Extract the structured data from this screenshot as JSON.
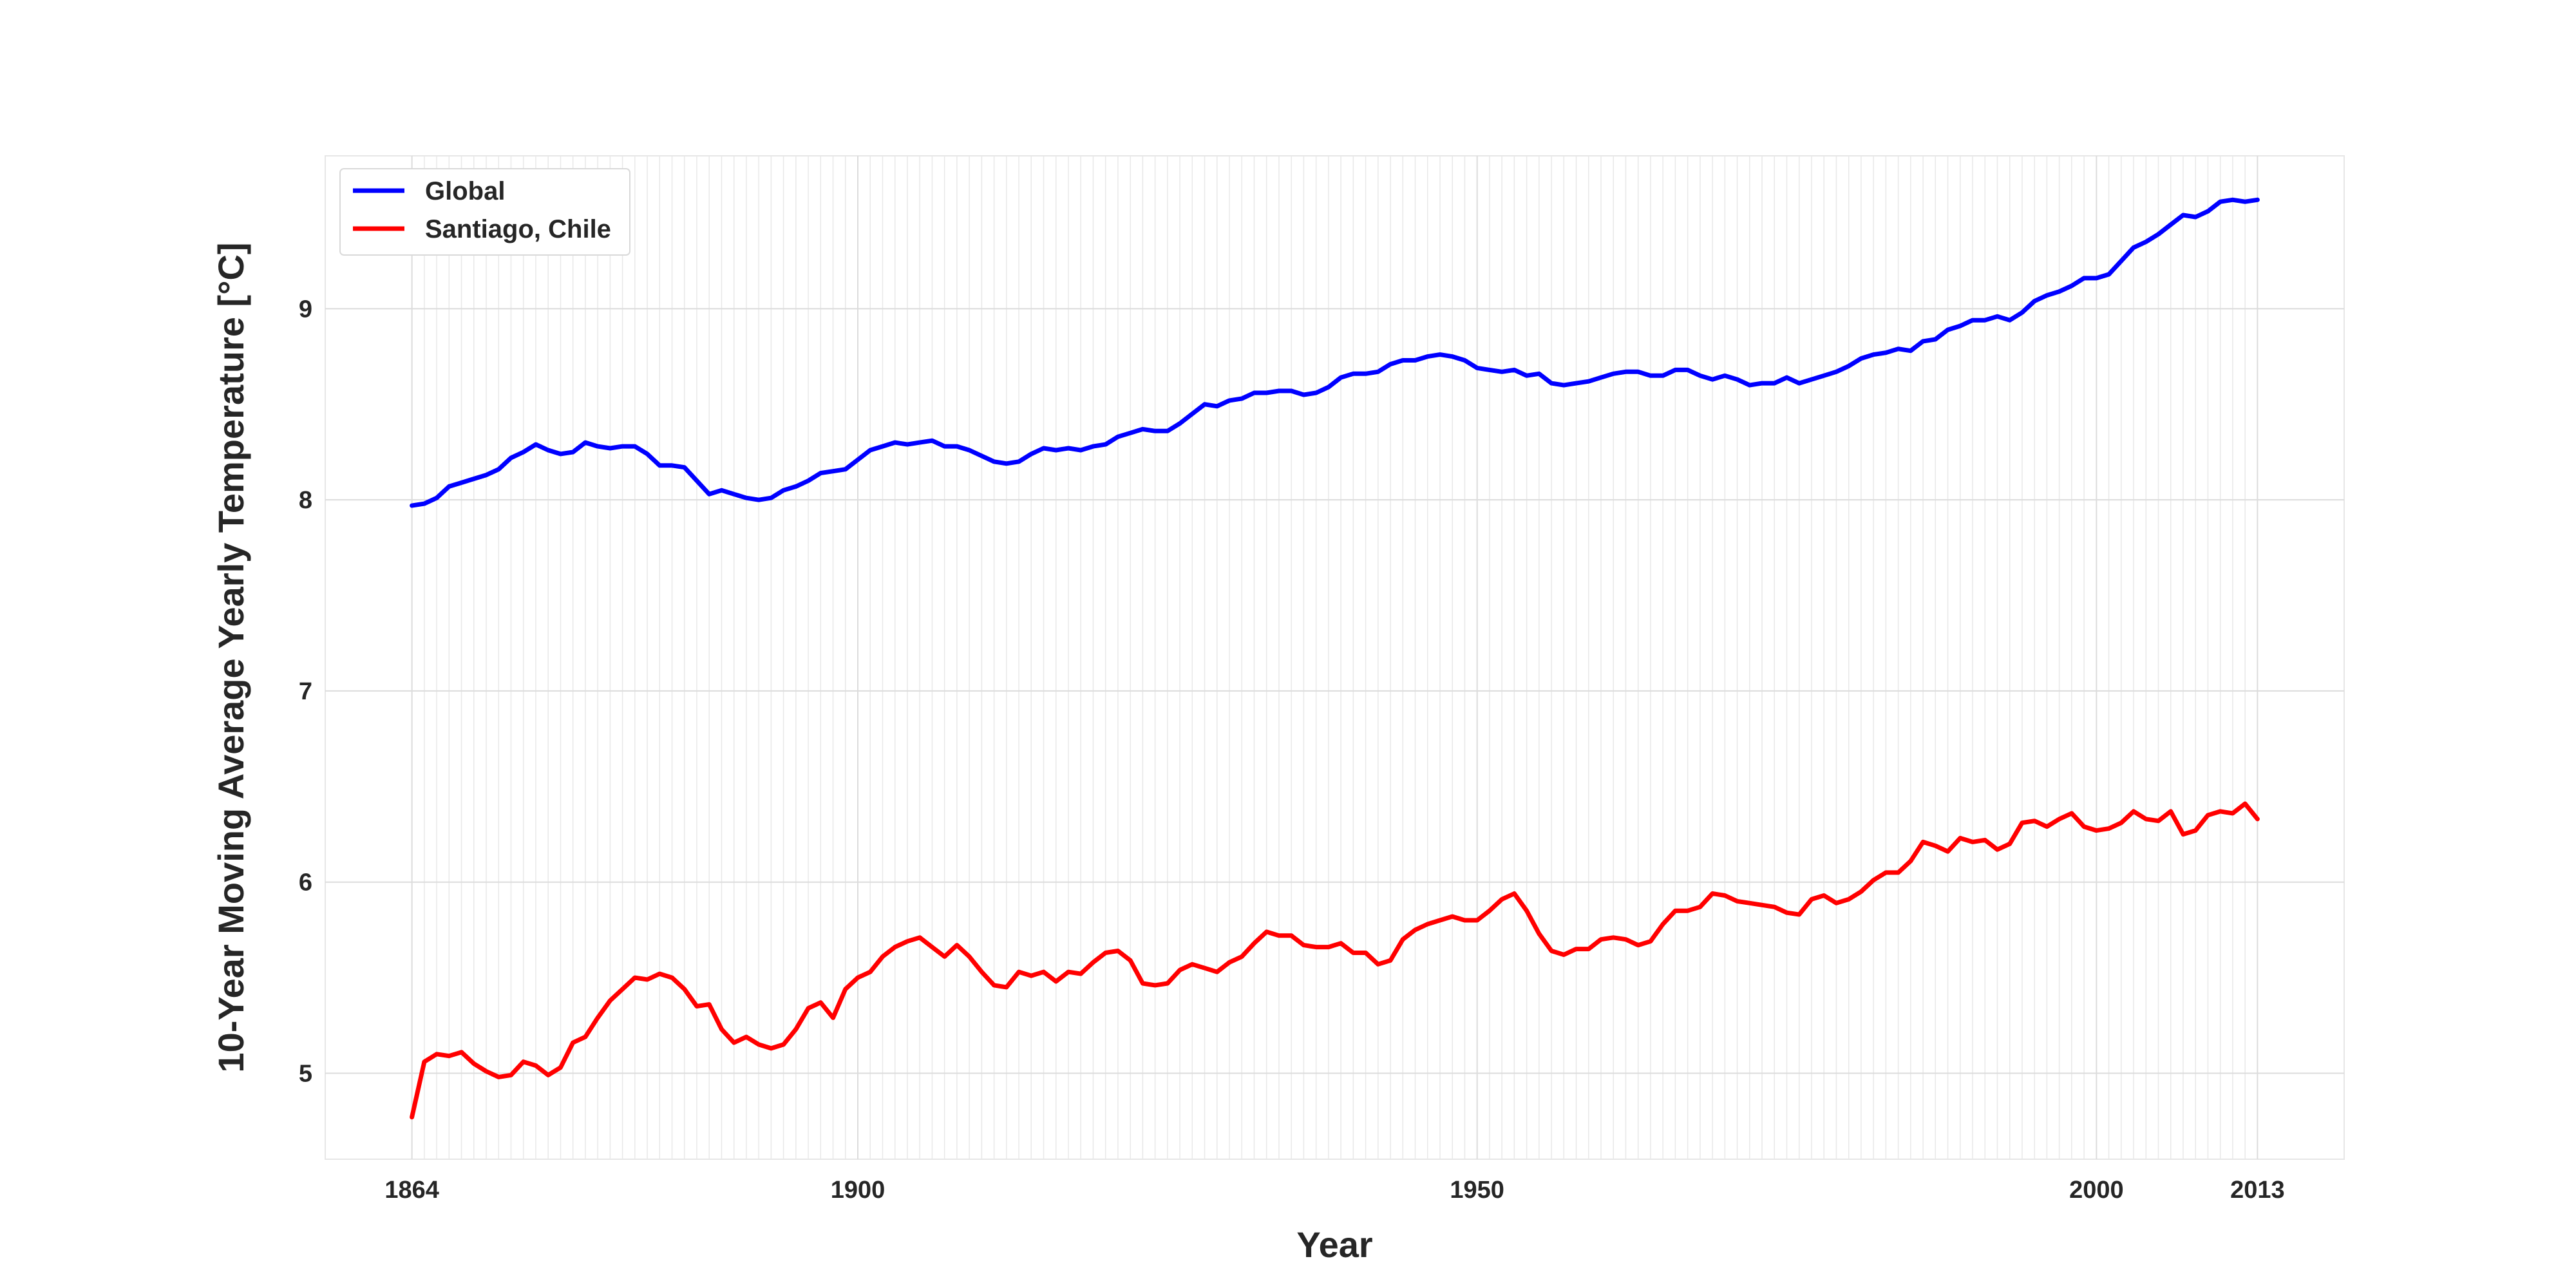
{
  "chart_data": {
    "type": "line",
    "title": "",
    "xlabel": "Year",
    "ylabel": "10-Year Moving Average Yearly Temperature [°C]",
    "xlim": [
      1857,
      2020
    ],
    "ylim": [
      4.55,
      9.8
    ],
    "x_ticks": [
      1864,
      1900,
      1950,
      2000,
      2013
    ],
    "y_ticks": [
      5,
      6,
      7,
      8,
      9
    ],
    "grid": true,
    "legend_position": "top-left",
    "colors": {
      "global": "#0000ff",
      "santiago": "#ff0000"
    },
    "x": [
      1864,
      1865,
      1866,
      1867,
      1868,
      1869,
      1870,
      1871,
      1872,
      1873,
      1874,
      1875,
      1876,
      1877,
      1878,
      1879,
      1880,
      1881,
      1882,
      1883,
      1884,
      1885,
      1886,
      1887,
      1888,
      1889,
      1890,
      1891,
      1892,
      1893,
      1894,
      1895,
      1896,
      1897,
      1898,
      1899,
      1900,
      1901,
      1902,
      1903,
      1904,
      1905,
      1906,
      1907,
      1908,
      1909,
      1910,
      1911,
      1912,
      1913,
      1914,
      1915,
      1916,
      1917,
      1918,
      1919,
      1920,
      1921,
      1922,
      1923,
      1924,
      1925,
      1926,
      1927,
      1928,
      1929,
      1930,
      1931,
      1932,
      1933,
      1934,
      1935,
      1936,
      1937,
      1938,
      1939,
      1940,
      1941,
      1942,
      1943,
      1944,
      1945,
      1946,
      1947,
      1948,
      1949,
      1950,
      1951,
      1952,
      1953,
      1954,
      1955,
      1956,
      1957,
      1958,
      1959,
      1960,
      1961,
      1962,
      1963,
      1964,
      1965,
      1966,
      1967,
      1968,
      1969,
      1970,
      1971,
      1972,
      1973,
      1974,
      1975,
      1976,
      1977,
      1978,
      1979,
      1980,
      1981,
      1982,
      1983,
      1984,
      1985,
      1986,
      1987,
      1988,
      1989,
      1990,
      1991,
      1992,
      1993,
      1994,
      1995,
      1996,
      1997,
      1998,
      1999,
      2000,
      2001,
      2002,
      2003,
      2004,
      2005,
      2006,
      2007,
      2008,
      2009,
      2010,
      2011,
      2012,
      2013
    ],
    "series": [
      {
        "name": "Global",
        "values": [
          7.97,
          7.98,
          8.01,
          8.07,
          8.09,
          8.11,
          8.13,
          8.16,
          8.22,
          8.25,
          8.29,
          8.26,
          8.24,
          8.25,
          8.3,
          8.28,
          8.27,
          8.28,
          8.28,
          8.24,
          8.18,
          8.18,
          8.17,
          8.1,
          8.03,
          8.05,
          8.03,
          8.01,
          8.0,
          8.01,
          8.05,
          8.07,
          8.1,
          8.14,
          8.15,
          8.16,
          8.21,
          8.26,
          8.28,
          8.3,
          8.29,
          8.3,
          8.31,
          8.28,
          8.28,
          8.26,
          8.23,
          8.2,
          8.19,
          8.2,
          8.24,
          8.27,
          8.26,
          8.27,
          8.26,
          8.28,
          8.29,
          8.33,
          8.35,
          8.37,
          8.36,
          8.36,
          8.4,
          8.45,
          8.5,
          8.49,
          8.52,
          8.53,
          8.56,
          8.56,
          8.57,
          8.57,
          8.55,
          8.56,
          8.59,
          8.64,
          8.66,
          8.66,
          8.67,
          8.71,
          8.73,
          8.73,
          8.75,
          8.76,
          8.75,
          8.73,
          8.69,
          8.68,
          8.67,
          8.68,
          8.65,
          8.66,
          8.61,
          8.6,
          8.61,
          8.62,
          8.64,
          8.66,
          8.67,
          8.67,
          8.65,
          8.65,
          8.68,
          8.68,
          8.65,
          8.63,
          8.65,
          8.63,
          8.6,
          8.61,
          8.61,
          8.64,
          8.61,
          8.63,
          8.65,
          8.67,
          8.7,
          8.74,
          8.76,
          8.77,
          8.79,
          8.78,
          8.83,
          8.84,
          8.89,
          8.91,
          8.94,
          8.94,
          8.96,
          8.94,
          8.98,
          9.04,
          9.07,
          9.09,
          9.12,
          9.16,
          9.16,
          9.18,
          9.25,
          9.32,
          9.35,
          9.39,
          9.44,
          9.49,
          9.48,
          9.51,
          9.56,
          9.57,
          9.56,
          9.57
        ]
      },
      {
        "name": "Santiago, Chile",
        "values": [
          4.77,
          5.06,
          5.1,
          5.09,
          5.11,
          5.05,
          5.01,
          4.98,
          4.99,
          5.06,
          5.04,
          4.99,
          5.03,
          5.16,
          5.19,
          5.29,
          5.38,
          5.44,
          5.5,
          5.49,
          5.52,
          5.5,
          5.44,
          5.35,
          5.36,
          5.23,
          5.16,
          5.19,
          5.15,
          5.13,
          5.15,
          5.23,
          5.34,
          5.37,
          5.29,
          5.44,
          5.5,
          5.53,
          5.61,
          5.66,
          5.69,
          5.71,
          5.66,
          5.61,
          5.67,
          5.61,
          5.53,
          5.46,
          5.45,
          5.53,
          5.51,
          5.53,
          5.48,
          5.53,
          5.52,
          5.58,
          5.63,
          5.64,
          5.59,
          5.47,
          5.46,
          5.47,
          5.54,
          5.57,
          5.55,
          5.53,
          5.58,
          5.61,
          5.68,
          5.74,
          5.72,
          5.72,
          5.67,
          5.66,
          5.66,
          5.68,
          5.63,
          5.63,
          5.57,
          5.59,
          5.7,
          5.75,
          5.78,
          5.8,
          5.82,
          5.8,
          5.8,
          5.85,
          5.91,
          5.94,
          5.85,
          5.73,
          5.64,
          5.62,
          5.65,
          5.65,
          5.7,
          5.71,
          5.7,
          5.67,
          5.69,
          5.78,
          5.85,
          5.85,
          5.87,
          5.94,
          5.93,
          5.9,
          5.89,
          5.88,
          5.87,
          5.84,
          5.83,
          5.91,
          5.93,
          5.89,
          5.91,
          5.95,
          6.01,
          6.05,
          6.05,
          6.11,
          6.21,
          6.19,
          6.16,
          6.23,
          6.21,
          6.22,
          6.17,
          6.2,
          6.31,
          6.32,
          6.29,
          6.33,
          6.36,
          6.29,
          6.27,
          6.28,
          6.31,
          6.37,
          6.33,
          6.32,
          6.37,
          6.25,
          6.27,
          6.35,
          6.37,
          6.36,
          6.41,
          6.33
        ]
      }
    ]
  }
}
